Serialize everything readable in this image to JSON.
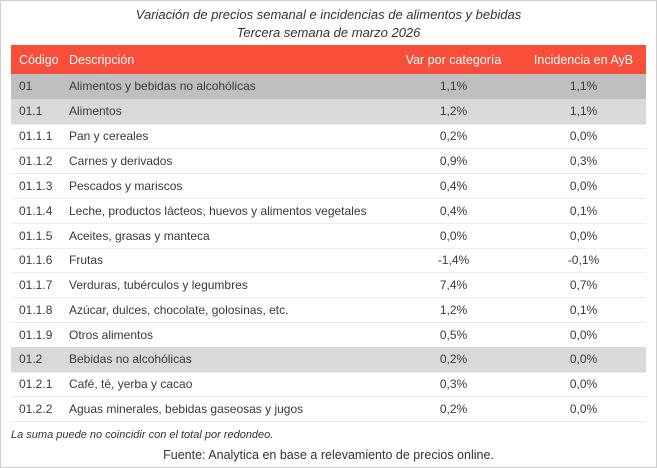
{
  "title": {
    "line1": "Variación de precios semanal e incidencias de alimentos y bebidas",
    "line2": "Tercera semana de marzo 2026"
  },
  "table": {
    "columns": [
      "Código",
      "Descripción",
      "Var por categoría",
      "Incidencia en AyB"
    ],
    "rows": [
      {
        "code": "01",
        "desc": "Alimentos y bebidas no alcohólicas",
        "var": "1,1%",
        "inc": "1,1%",
        "level": "total"
      },
      {
        "code": "01.1",
        "desc": "Alimentos",
        "var": "1,2%",
        "inc": "1,1%",
        "level": "group"
      },
      {
        "code": "01.1.1",
        "desc": "Pan y cereales",
        "var": "0,2%",
        "inc": "0,0%",
        "level": "item"
      },
      {
        "code": "01.1.2",
        "desc": "Carnes y derivados",
        "var": "0,9%",
        "inc": "0,3%",
        "level": "item"
      },
      {
        "code": "01.1.3",
        "desc": "Pescados y mariscos",
        "var": "0,4%",
        "inc": "0,0%",
        "level": "item"
      },
      {
        "code": "01.1.4",
        "desc": "Leche, productos lácteos, huevos y alimentos vegetales",
        "var": "0,4%",
        "inc": "0,1%",
        "level": "item"
      },
      {
        "code": "01.1.5",
        "desc": "Aceites, grasas y manteca",
        "var": "0,0%",
        "inc": "0,0%",
        "level": "item"
      },
      {
        "code": "01.1.6",
        "desc": "Frutas",
        "var": "-1,4%",
        "inc": "-0,1%",
        "level": "item"
      },
      {
        "code": "01.1.7",
        "desc": "Verduras, tubérculos y legumbres",
        "var": "7,4%",
        "inc": "0,7%",
        "level": "item"
      },
      {
        "code": "01.1.8",
        "desc": "Azúcar, dulces, chocolate, golosinas, etc.",
        "var": "1,2%",
        "inc": "0,1%",
        "level": "item"
      },
      {
        "code": "01.1.9",
        "desc": "Otros alimentos",
        "var": "0,5%",
        "inc": "0,0%",
        "level": "item"
      },
      {
        "code": "01.2",
        "desc": "Bebidas no alcohólicas",
        "var": "0,2%",
        "inc": "0,0%",
        "level": "group"
      },
      {
        "code": "01.2.1",
        "desc": "Café, té, yerba y cacao",
        "var": "0,3%",
        "inc": "0,0%",
        "level": "item"
      },
      {
        "code": "01.2.2",
        "desc": "Aguas minerales, bebidas gaseosas y jugos",
        "var": "0,2%",
        "inc": "0,0%",
        "level": "item"
      }
    ]
  },
  "footer": {
    "note": "La suma puede no coincidir con el total por redondeo.",
    "source": "Fuente: Analytica en base a relevamiento de precios online."
  },
  "colors": {
    "header_bg": "#F94E3A",
    "header_text": "#FFFFFF",
    "row_total_bg": "#BFBFBF",
    "row_group_bg": "#D9D9D9",
    "body_text": "#3A3A3A"
  },
  "chart_data": {
    "type": "table",
    "title": "Variación de precios semanal e incidencias de alimentos y bebidas",
    "subtitle": "Tercera semana de marzo 2026",
    "columns": [
      "Código",
      "Descripción",
      "Var por categoría (%)",
      "Incidencia en AyB (%)"
    ],
    "rows": [
      [
        "01",
        "Alimentos y bebidas no alcohólicas",
        1.1,
        1.1
      ],
      [
        "01.1",
        "Alimentos",
        1.2,
        1.1
      ],
      [
        "01.1.1",
        "Pan y cereales",
        0.2,
        0.0
      ],
      [
        "01.1.2",
        "Carnes y derivados",
        0.9,
        0.3
      ],
      [
        "01.1.3",
        "Pescados y mariscos",
        0.4,
        0.0
      ],
      [
        "01.1.4",
        "Leche, productos lácteos, huevos y alimentos vegetales",
        0.4,
        0.1
      ],
      [
        "01.1.5",
        "Aceites, grasas y manteca",
        0.0,
        0.0
      ],
      [
        "01.1.6",
        "Frutas",
        -1.4,
        -0.1
      ],
      [
        "01.1.7",
        "Verduras, tubérculos y legumbres",
        7.4,
        0.7
      ],
      [
        "01.1.8",
        "Azúcar, dulces, chocolate, golosinas, etc.",
        1.2,
        0.1
      ],
      [
        "01.1.9",
        "Otros alimentos",
        0.5,
        0.0
      ],
      [
        "01.2",
        "Bebidas no alcohólicas",
        0.2,
        0.0
      ],
      [
        "01.2.1",
        "Café, té, yerba y cacao",
        0.3,
        0.0
      ],
      [
        "01.2.2",
        "Aguas minerales, bebidas gaseosas y jugos",
        0.2,
        0.0
      ]
    ],
    "note": "La suma puede no coincidir con el total por redondeo.",
    "source": "Fuente: Analytica en base a relevamiento de precios online."
  }
}
